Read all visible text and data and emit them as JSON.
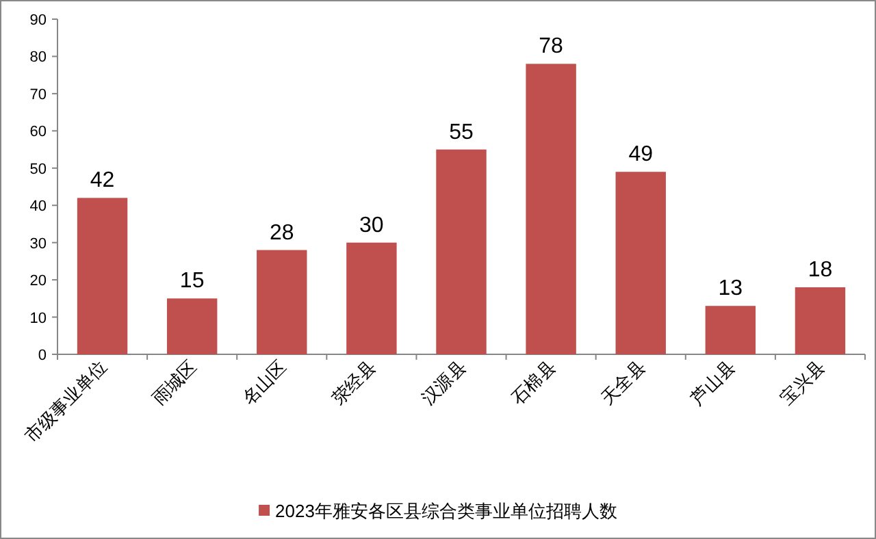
{
  "chart_data": {
    "type": "bar",
    "categories": [
      "市级事业单位",
      "雨城区",
      "名山区",
      "荥经县",
      "汉源县",
      "石棉县",
      "天全县",
      "芦山县",
      "宝兴县"
    ],
    "series": [
      {
        "name": "2023年雅安各区县综合类事业单位招聘人数",
        "color": "#c0504d",
        "values": [
          42,
          15,
          28,
          30,
          55,
          78,
          49,
          13,
          18
        ]
      }
    ],
    "ylim": [
      0,
      90
    ],
    "yticks": [
      0,
      10,
      20,
      30,
      40,
      50,
      60,
      70,
      80,
      90
    ],
    "data_labels": true,
    "legend": "bottom"
  }
}
